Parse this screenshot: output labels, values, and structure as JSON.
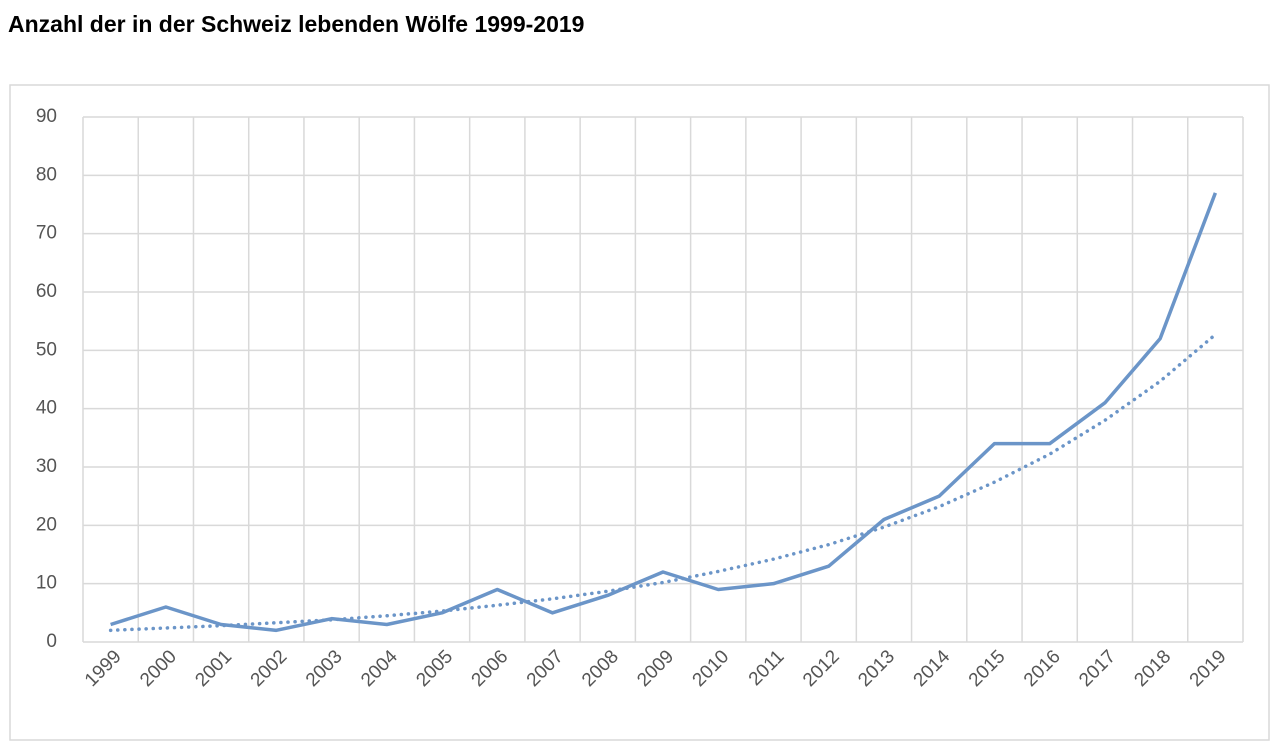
{
  "chart_data": {
    "type": "line",
    "title": "Anzahl der in der Schweiz lebenden Wölfe 1999-2019",
    "categories": [
      "1999",
      "2000",
      "2001",
      "2002",
      "2003",
      "2004",
      "2005",
      "2006",
      "2007",
      "2008",
      "2009",
      "2010",
      "2011",
      "2012",
      "2013",
      "2014",
      "2015",
      "2016",
      "2017",
      "2018",
      "2019"
    ],
    "series": [
      {
        "color": "#6b95c8",
        "style": "solid",
        "values": [
          3,
          6,
          3,
          2,
          4,
          3,
          5,
          9,
          5,
          8,
          12,
          9,
          10,
          13,
          21,
          25,
          34,
          34,
          41,
          52,
          77
        ]
      },
      {
        "color": "#6b95c8",
        "style": "dotted",
        "values": [
          2,
          2.4,
          2.8,
          3.3,
          3.8,
          4.5,
          5.3,
          6.3,
          7.4,
          8.7,
          10.2,
          12.1,
          14.2,
          16.7,
          19.7,
          23.2,
          27.4,
          32.2,
          38,
          44.7,
          52.7
        ]
      }
    ],
    "ylim": [
      0,
      90
    ],
    "yticks": [
      0,
      10,
      20,
      30,
      40,
      50,
      60,
      70,
      80,
      90
    ],
    "grid": true
  }
}
